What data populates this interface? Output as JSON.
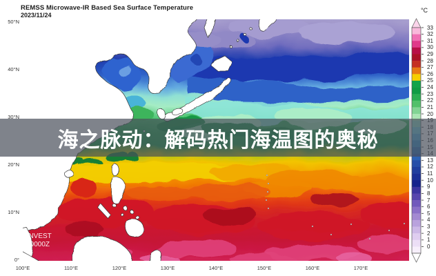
{
  "header": {
    "title": "REMSS Microwave-IR Based Sea Surface Temperature",
    "date": "2023/11/24"
  },
  "overlay": {
    "headline": "海之脉动：解码热门海温图的奥秘"
  },
  "watermark": {
    "line1": "W.INVEST",
    "line2": "/25 0000Z"
  },
  "map_axes": {
    "lat_labels": [
      "50°N",
      "40°N",
      "30°N",
      "20°N",
      "10°N",
      "0°"
    ],
    "lon_labels": [
      "100°E",
      "110°E",
      "120°E",
      "130°E",
      "140°E",
      "150°E",
      "160°E",
      "170°E"
    ]
  },
  "colorbar": {
    "unit": "°C",
    "ticks": [
      33,
      32,
      31,
      30,
      29,
      28,
      27,
      26,
      25,
      24,
      23,
      22,
      21,
      20,
      19,
      18,
      17,
      16,
      15,
      14,
      13,
      12,
      11,
      10,
      9,
      8,
      7,
      6,
      5,
      4,
      3,
      2,
      1,
      0
    ],
    "arrow_top_color": "#fbd4ea",
    "arrow_bottom_color": "#ffffff",
    "segment_colors": [
      "#f9b9db",
      "#f070b4",
      "#e03a8a",
      "#b81048",
      "#ab1228",
      "#c53022",
      "#e87a14",
      "#f6cf00",
      "#12a44a",
      "#0f9c44",
      "#2aae52",
      "#52c06a",
      "#82d494",
      "#aae6b4",
      "#8fe0cc",
      "#74cfe0",
      "#54b2dc",
      "#3b96d0",
      "#2f7ac0",
      "#2c62b4",
      "#274ea8",
      "#203e9e",
      "#1a2f96",
      "#15238c",
      "#3c35a0",
      "#5746ae",
      "#7159bc",
      "#8b70c8",
      "#a389d2",
      "#b9a2dd",
      "#cdb9e7",
      "#dfcdf0",
      "#ecdff6",
      "#f7effb"
    ]
  },
  "chart_data": {
    "type": "heatmap",
    "title": "REMSS Microwave-IR Based Sea Surface Temperature",
    "date": "2023/11/24",
    "region": "Western Pacific",
    "x_axis": {
      "label": "longitude",
      "tick_labels": [
        "100°E",
        "110°E",
        "120°E",
        "130°E",
        "140°E",
        "150°E",
        "160°E",
        "170°E"
      ],
      "range": [
        "100°E",
        "180°E"
      ]
    },
    "y_axis": {
      "label": "latitude",
      "tick_labels": [
        "50°N",
        "40°N",
        "30°N",
        "20°N",
        "10°N",
        "0°"
      ],
      "range": [
        "0°",
        "50°N"
      ]
    },
    "colorbar": {
      "unit": "°C",
      "min": 0,
      "max": 33
    },
    "pattern": "SST decreases northward: ~30-31°C magenta-red near equator, 25-28°C orange-red 10-20°N, 26°C yellow band near 20°N, 21-25°C greens 25-33°N, 15-20°C cyan-blue 34-40°N, 10-13°C dark blue front 40-43°N, 5-9°C purple north of 44°N"
  }
}
